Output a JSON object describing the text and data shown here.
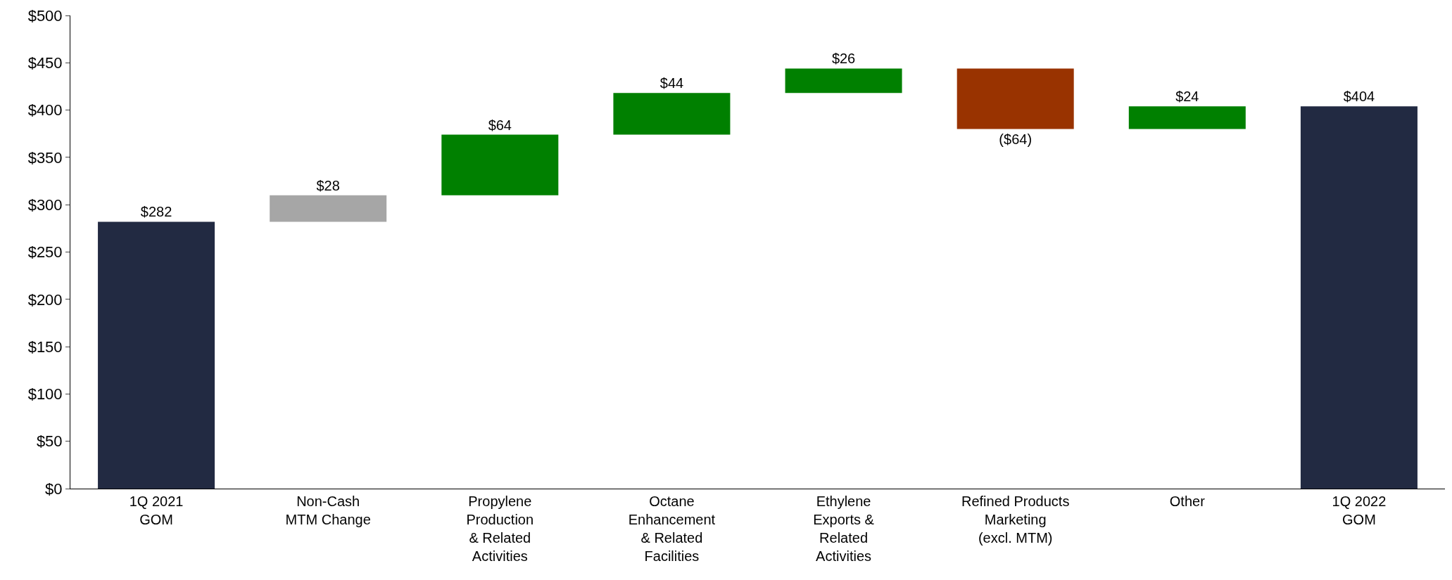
{
  "chart_data": {
    "type": "bar",
    "categories": [
      "1Q 2021\nGOM",
      "Non-Cash\nMTM Change",
      "Propylene\nProduction\n& Related\nActivities",
      "Octane\nEnhancement\n& Related\nFacilities",
      "Ethylene\nExports &\nRelated\nActivities",
      "Refined Products\nMarketing\n(excl. MTM)",
      "Other",
      "1Q 2022\nGOM"
    ],
    "values": [
      282,
      28,
      64,
      44,
      26,
      -64,
      24,
      404
    ],
    "base": [
      0,
      282,
      310,
      374,
      418,
      444,
      380,
      0
    ],
    "colors": [
      "#222a42",
      "#a6a6a6",
      "#008000",
      "#008000",
      "#008000",
      "#993300",
      "#008000",
      "#222a42"
    ],
    "value_labels": [
      "$282",
      "$28",
      "$64",
      "$44",
      "$26",
      "($64)",
      "$24",
      "$404"
    ],
    "ylim": [
      0,
      500
    ],
    "yticks": [
      {
        "value": 0,
        "label": "$0"
      },
      {
        "value": 50,
        "label": "$50"
      },
      {
        "value": 100,
        "label": "$100"
      },
      {
        "value": 150,
        "label": "$150"
      },
      {
        "value": 200,
        "label": "$200"
      },
      {
        "value": 250,
        "label": "$250"
      },
      {
        "value": 300,
        "label": "$300"
      },
      {
        "value": 350,
        "label": "$350"
      },
      {
        "value": 400,
        "label": "$400"
      },
      {
        "value": 450,
        "label": "$450"
      },
      {
        "value": 500,
        "label": "$500"
      }
    ],
    "legend": false
  }
}
